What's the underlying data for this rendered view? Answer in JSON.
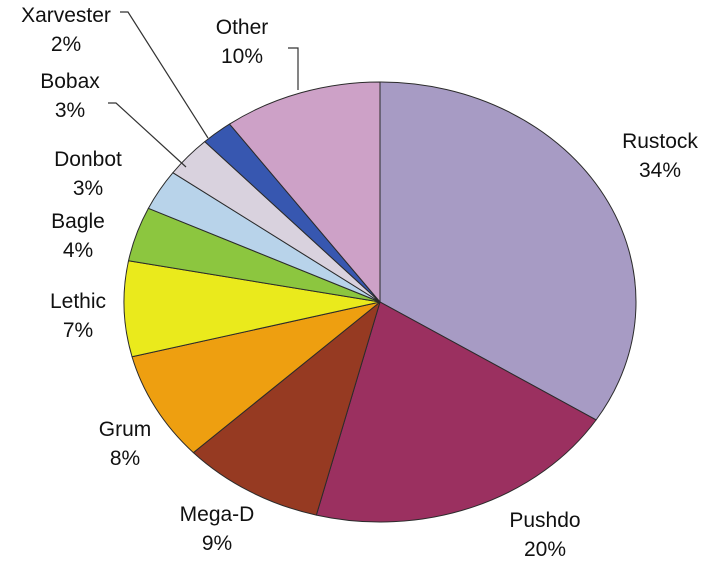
{
  "chart_data": {
    "type": "pie",
    "title": "",
    "slices": [
      {
        "label": "Rustock",
        "value": 34,
        "display": "34%",
        "color": "#a79bc4"
      },
      {
        "label": "Pushdo",
        "value": 20,
        "display": "20%",
        "color": "#9b3060"
      },
      {
        "label": "Mega-D",
        "value": 9,
        "display": "9%",
        "color": "#963a22"
      },
      {
        "label": "Grum",
        "value": 8,
        "display": "8%",
        "color": "#ee9f10"
      },
      {
        "label": "Lethic",
        "value": 7,
        "display": "7%",
        "color": "#eaea1c"
      },
      {
        "label": "Bagle",
        "value": 4,
        "display": "4%",
        "color": "#8cc63f"
      },
      {
        "label": "Donbot",
        "value": 3,
        "display": "3%",
        "color": "#b8d3ea"
      },
      {
        "label": "Bobax",
        "value": 3,
        "display": "3%",
        "color": "#d9d2de"
      },
      {
        "label": "Xarvester",
        "value": 2,
        "display": "2%",
        "color": "#3757b0"
      },
      {
        "label": "Other",
        "value": 10,
        "display": "10%",
        "color": "#cda1c7"
      }
    ],
    "legend": "none",
    "start": "top, clockwise"
  }
}
